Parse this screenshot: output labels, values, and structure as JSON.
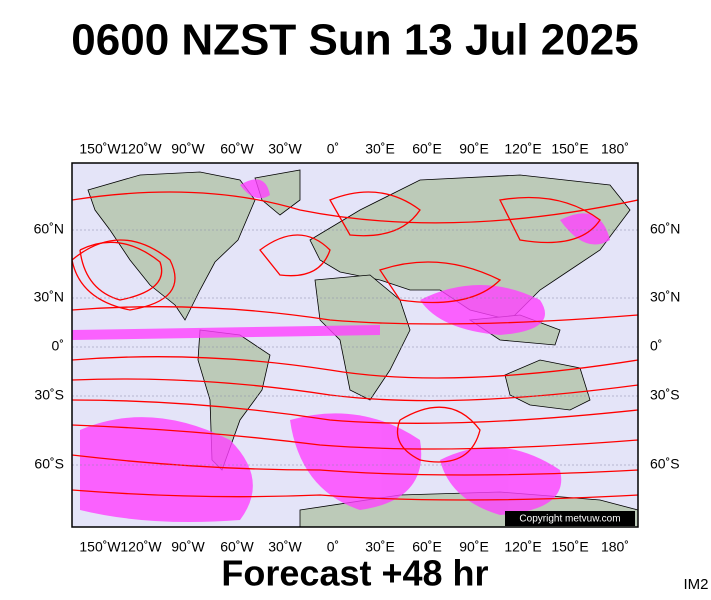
{
  "header": {
    "title": "0600 NZST Sun 13 Jul 2025"
  },
  "map": {
    "longitude_labels": [
      "150˚W",
      "120˚W",
      "90˚W",
      "60˚W",
      "30˚W",
      "0˚",
      "30˚E",
      "60˚E",
      "90˚E",
      "120˚E",
      "150˚E",
      "180˚"
    ],
    "latitude_labels": [
      "60˚N",
      "30˚N",
      "0˚",
      "30˚S",
      "60˚S"
    ],
    "copyright": "Copyright metvuw.com"
  },
  "footer": {
    "forecast": "Forecast +48 hr",
    "corner": "IM2"
  }
}
